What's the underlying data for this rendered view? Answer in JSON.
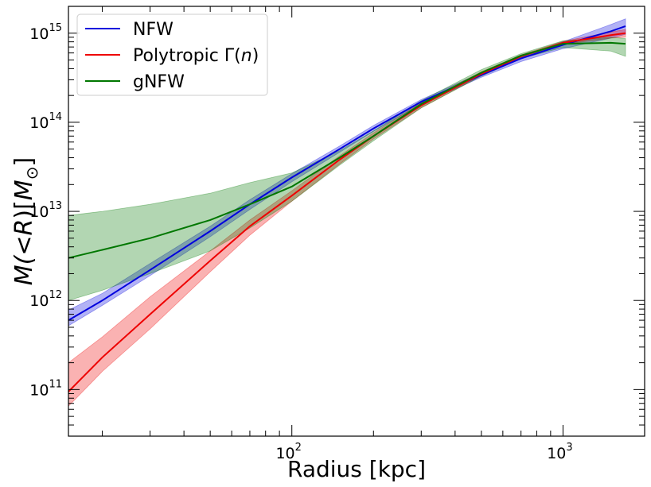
{
  "chart_data": {
    "type": "line",
    "xlabel": "Radius [kpc]",
    "ylabel_parts": [
      "M(",
      "<",
      "R",
      ")[",
      "M",
      "⊙",
      "]"
    ],
    "xscale": "log",
    "yscale": "log",
    "xlim": [
      15,
      2000
    ],
    "ylim": [
      30000000000.0,
      2000000000000000.0
    ],
    "grid": false,
    "legend_position": "top-left",
    "x_ticks": [
      {
        "base": "10",
        "exp": "2",
        "value": 100
      },
      {
        "base": "10",
        "exp": "3",
        "value": 1000
      }
    ],
    "y_ticks": [
      {
        "base": "10",
        "exp": "11",
        "value": 100000000000.0
      },
      {
        "base": "10",
        "exp": "12",
        "value": 1000000000000.0
      },
      {
        "base": "10",
        "exp": "13",
        "value": 10000000000000.0
      },
      {
        "base": "10",
        "exp": "14",
        "value": 100000000000000.0
      },
      {
        "base": "10",
        "exp": "15",
        "value": 1000000000000000.0
      }
    ],
    "series": [
      {
        "name": "NFW",
        "color": "#0000dd",
        "x": [
          15,
          20,
          30,
          50,
          70,
          100,
          150,
          200,
          300,
          500,
          700,
          1000,
          1500,
          1700
        ],
        "y": [
          600000000000.0,
          1000000000000.0,
          2200000000000.0,
          6000000000000.0,
          12000000000000.0,
          24000000000000.0,
          50000000000000.0,
          85000000000000.0,
          170000000000000.0,
          340000000000000.0,
          520000000000000.0,
          740000000000000.0,
          1050000000000000.0,
          1200000000000000.0
        ],
        "lower": [
          520000000000.0,
          880000000000.0,
          1900000000000.0,
          5200000000000.0,
          10500000000000.0,
          21500000000000.0,
          46000000000000.0,
          79000000000000.0,
          160000000000000.0,
          320000000000000.0,
          480000000000000.0,
          670000000000000.0,
          880000000000000.0,
          970000000000000.0
        ],
        "upper": [
          780000000000.0,
          1200000000000.0,
          2600000000000.0,
          6800000000000.0,
          13500000000000.0,
          26500000000000.0,
          54000000000000.0,
          92000000000000.0,
          180000000000000.0,
          360000000000000.0,
          550000000000000.0,
          800000000000000.0,
          1250000000000000.0,
          1450000000000000.0
        ]
      },
      {
        "name": "Polytropic Γ(n)",
        "name_parts": [
          "Polytropic Γ(",
          "n",
          ")"
        ],
        "color": "#ee0000",
        "x": [
          15,
          20,
          30,
          50,
          70,
          100,
          150,
          200,
          300,
          500,
          700,
          1000,
          1500,
          1700
        ],
        "y": [
          95000000000.0,
          230000000000.0,
          700000000000.0,
          2800000000000.0,
          6800000000000.0,
          15000000000000.0,
          38000000000000.0,
          70000000000000.0,
          155000000000000.0,
          350000000000000.0,
          550000000000000.0,
          780000000000000.0,
          950000000000000.0,
          1000000000000000.0
        ],
        "lower": [
          65000000000.0,
          160000000000.0,
          480000000000.0,
          2100000000000.0,
          5400000000000.0,
          13000000000000.0,
          34000000000000.0,
          65000000000000.0,
          145000000000000.0,
          335000000000000.0,
          530000000000000.0,
          750000000000000.0,
          880000000000000.0,
          900000000000000.0
        ],
        "upper": [
          200000000000.0,
          390000000000.0,
          1100000000000.0,
          3600000000000.0,
          8000000000000.0,
          17000000000000.0,
          42000000000000.0,
          76000000000000.0,
          165000000000000.0,
          370000000000000.0,
          570000000000000.0,
          810000000000000.0,
          1030000000000000.0,
          1100000000000000.0
        ]
      },
      {
        "name": "gNFW",
        "color": "#007700",
        "x": [
          15,
          20,
          30,
          50,
          70,
          100,
          150,
          200,
          300,
          500,
          700,
          1000,
          1500,
          1700
        ],
        "y": [
          3000000000000.0,
          3700000000000.0,
          5000000000000.0,
          8000000000000.0,
          12000000000000.0,
          19000000000000.0,
          40000000000000.0,
          70000000000000.0,
          160000000000000.0,
          360000000000000.0,
          560000000000000.0,
          760000000000000.0,
          780000000000000.0,
          760000000000000.0
        ],
        "lower": [
          1000000000000.0,
          1300000000000.0,
          2000000000000.0,
          3600000000000.0,
          6500000000000.0,
          13000000000000.0,
          33000000000000.0,
          62000000000000.0,
          145000000000000.0,
          330000000000000.0,
          520000000000000.0,
          690000000000000.0,
          630000000000000.0,
          550000000000000.0
        ],
        "upper": [
          9000000000000.0,
          10000000000000.0,
          12000000000000.0,
          16000000000000.0,
          21000000000000.0,
          27000000000000.0,
          48000000000000.0,
          80000000000000.0,
          175000000000000.0,
          390000000000000.0,
          590000000000000.0,
          820000000000000.0,
          900000000000000.0,
          870000000000000.0
        ]
      }
    ]
  }
}
